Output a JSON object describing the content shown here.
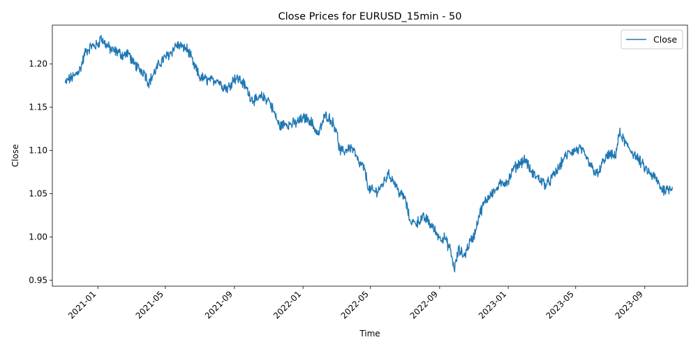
{
  "chart_data": {
    "type": "line",
    "title": "Close Prices for EURUSD_15min - 50",
    "xlabel": "Time",
    "ylabel": "Close",
    "xlim": [
      "2020-10-12",
      "2023-11-16"
    ],
    "ylim": [
      0.943,
      1.245
    ],
    "x_ticks": [
      "2021-01",
      "2021-05",
      "2021-09",
      "2022-01",
      "2022-05",
      "2022-09",
      "2023-01",
      "2023-05",
      "2023-09"
    ],
    "y_ticks": [
      0.95,
      1.0,
      1.05,
      1.1,
      1.15,
      1.2
    ],
    "y_tick_labels": [
      "0.95",
      "1.00",
      "1.05",
      "1.10",
      "1.15",
      "1.20"
    ],
    "grid": false,
    "legend_position": "top-right",
    "series": [
      {
        "name": "Close",
        "color": "#1f77b4",
        "x": [
          "2020-11-04",
          "2020-11-10",
          "2020-11-20",
          "2020-12-01",
          "2020-12-10",
          "2020-12-20",
          "2021-01-01",
          "2021-01-06",
          "2021-01-15",
          "2021-01-25",
          "2021-02-05",
          "2021-02-15",
          "2021-02-25",
          "2021-03-05",
          "2021-03-15",
          "2021-03-25",
          "2021-04-01",
          "2021-04-10",
          "2021-04-20",
          "2021-05-01",
          "2021-05-10",
          "2021-05-20",
          "2021-06-01",
          "2021-06-10",
          "2021-06-20",
          "2021-07-01",
          "2021-07-10",
          "2021-07-20",
          "2021-08-01",
          "2021-08-10",
          "2021-08-20",
          "2021-09-01",
          "2021-09-10",
          "2021-09-20",
          "2021-10-01",
          "2021-10-10",
          "2021-10-20",
          "2021-11-01",
          "2021-11-10",
          "2021-11-20",
          "2021-12-01",
          "2021-12-10",
          "2021-12-20",
          "2022-01-01",
          "2022-01-10",
          "2022-01-20",
          "2022-01-28",
          "2022-02-10",
          "2022-02-20",
          "2022-03-01",
          "2022-03-07",
          "2022-03-15",
          "2022-03-25",
          "2022-04-01",
          "2022-04-10",
          "2022-04-20",
          "2022-04-28",
          "2022-05-10",
          "2022-05-20",
          "2022-06-01",
          "2022-06-10",
          "2022-06-20",
          "2022-07-01",
          "2022-07-10",
          "2022-07-20",
          "2022-08-01",
          "2022-08-10",
          "2022-08-20",
          "2022-09-01",
          "2022-09-10",
          "2022-09-20",
          "2022-09-27",
          "2022-10-05",
          "2022-10-15",
          "2022-10-25",
          "2022-11-01",
          "2022-11-10",
          "2022-11-20",
          "2022-12-01",
          "2022-12-10",
          "2022-12-20",
          "2023-01-01",
          "2023-01-10",
          "2023-01-20",
          "2023-02-01",
          "2023-02-10",
          "2023-02-20",
          "2023-03-01",
          "2023-03-10",
          "2023-03-20",
          "2023-04-01",
          "2023-04-10",
          "2023-04-20",
          "2023-05-01",
          "2023-05-10",
          "2023-05-20",
          "2023-06-01",
          "2023-06-10",
          "2023-06-20",
          "2023-07-01",
          "2023-07-10",
          "2023-07-18",
          "2023-08-01",
          "2023-08-10",
          "2023-08-20",
          "2023-09-01",
          "2023-09-10",
          "2023-09-20",
          "2023-10-01",
          "2023-10-10",
          "2023-10-20"
        ],
        "values": [
          1.178,
          1.182,
          1.186,
          1.195,
          1.214,
          1.22,
          1.222,
          1.23,
          1.223,
          1.216,
          1.214,
          1.21,
          1.213,
          1.2,
          1.195,
          1.19,
          1.178,
          1.188,
          1.2,
          1.208,
          1.212,
          1.222,
          1.22,
          1.217,
          1.2,
          1.185,
          1.183,
          1.18,
          1.182,
          1.175,
          1.172,
          1.184,
          1.182,
          1.175,
          1.16,
          1.158,
          1.162,
          1.158,
          1.145,
          1.128,
          1.131,
          1.13,
          1.132,
          1.137,
          1.138,
          1.128,
          1.118,
          1.142,
          1.135,
          1.125,
          1.1,
          1.098,
          1.105,
          1.1,
          1.085,
          1.08,
          1.055,
          1.052,
          1.058,
          1.072,
          1.067,
          1.052,
          1.045,
          1.02,
          1.015,
          1.022,
          1.02,
          1.01,
          1.0,
          0.998,
          0.985,
          0.962,
          0.985,
          0.978,
          0.995,
          1.0,
          1.025,
          1.04,
          1.05,
          1.055,
          1.062,
          1.065,
          1.078,
          1.085,
          1.09,
          1.075,
          1.07,
          1.065,
          1.06,
          1.068,
          1.08,
          1.09,
          1.098,
          1.1,
          1.102,
          1.09,
          1.078,
          1.072,
          1.09,
          1.095,
          1.092,
          1.12,
          1.105,
          1.098,
          1.09,
          1.08,
          1.073,
          1.068,
          1.055,
          1.055,
          1.058
        ]
      }
    ]
  }
}
